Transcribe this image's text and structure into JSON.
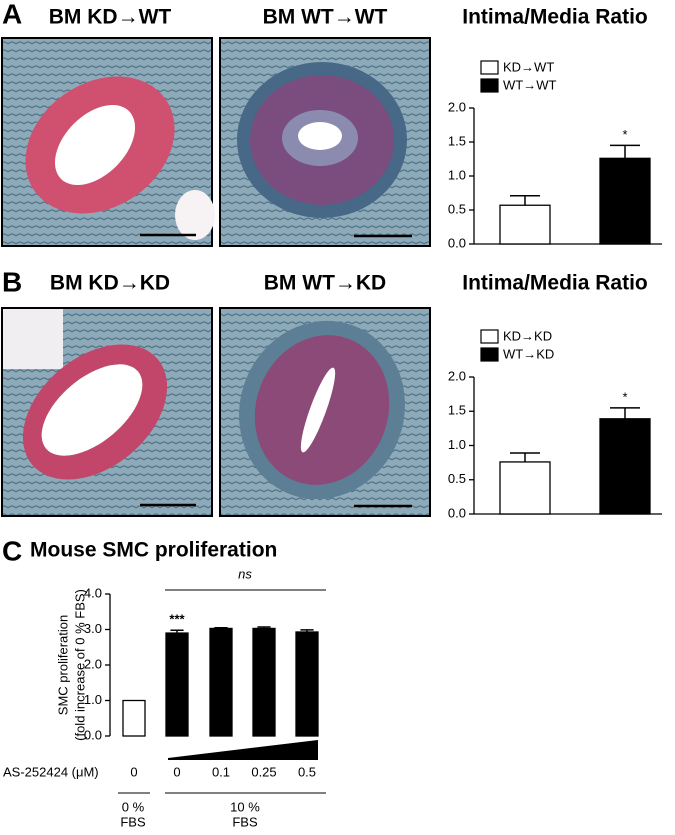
{
  "panels": [
    {
      "letter": "A",
      "image_titles": [
        "BM KD→WT",
        "BM WT→WT"
      ]
    },
    {
      "letter": "B",
      "image_titles": [
        "BM KD→KD",
        "BM WT→KD"
      ]
    },
    {
      "letter": "C"
    }
  ],
  "chart_data": [
    {
      "type": "bar",
      "title": "Intima/Media Ratio",
      "series": [
        {
          "name": "KD→WT",
          "color": "#ffffff",
          "values": [
            0.57
          ],
          "errors": [
            0.14
          ]
        },
        {
          "name": "WT→WT",
          "color": "#000000",
          "values": [
            1.26
          ],
          "errors": [
            0.19
          ]
        }
      ],
      "annotations": [
        "*"
      ],
      "ylim": [
        0,
        2
      ],
      "yticks": [
        {
          "value": 0,
          "label": "0.0"
        },
        {
          "value": 0.5,
          "label": "0.5"
        },
        {
          "value": 1,
          "label": "1.0"
        },
        {
          "value": 1.5,
          "label": "1.5"
        },
        {
          "value": 2,
          "label": "2.0"
        }
      ]
    },
    {
      "type": "bar",
      "title": "Intima/Media Ratio",
      "series": [
        {
          "name": "KD→KD",
          "color": "#ffffff",
          "values": [
            0.76
          ],
          "errors": [
            0.13
          ]
        },
        {
          "name": "WT→KD",
          "color": "#000000",
          "values": [
            1.39
          ],
          "errors": [
            0.16
          ]
        }
      ],
      "annotations": [
        "*"
      ],
      "ylim": [
        0,
        2
      ],
      "yticks": [
        {
          "value": 0,
          "label": "0.0"
        },
        {
          "value": 0.5,
          "label": "0.5"
        },
        {
          "value": 1,
          "label": "1.0"
        },
        {
          "value": 1.5,
          "label": "1.5"
        },
        {
          "value": 2,
          "label": "2.0"
        }
      ]
    },
    {
      "type": "bar",
      "title": "Mouse SMC proliferation",
      "ylabel": [
        "SMC proliferation",
        "(fold increase of 0 % FBS)"
      ],
      "xlabel": "AS-252424 (μM)",
      "categories": [
        "0",
        "0",
        "0.1",
        "0.25",
        "0.5"
      ],
      "values": [
        1.0,
        2.9,
        3.03,
        3.03,
        2.93
      ],
      "errors": [
        null,
        0.08,
        0.02,
        0.04,
        0.06
      ],
      "colors": [
        "#ffffff",
        "#000000",
        "#000000",
        "#000000",
        "#000000"
      ],
      "groups": [
        [
          "0 %",
          "FBS"
        ],
        [
          "10 %",
          "FBS"
        ]
      ],
      "annotations": [
        "***",
        "ns"
      ],
      "ylim": [
        0,
        4
      ],
      "yticks": [
        {
          "value": 0,
          "label": "0.0"
        },
        {
          "value": 1,
          "label": "1.0"
        },
        {
          "value": 2,
          "label": "2.0"
        },
        {
          "value": 3,
          "label": "3.0"
        },
        {
          "value": 4,
          "label": "4.0"
        }
      ]
    }
  ]
}
